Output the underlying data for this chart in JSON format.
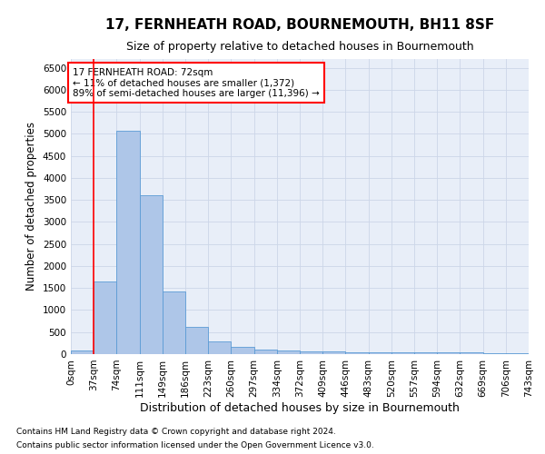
{
  "title": "17, FERNHEATH ROAD, BOURNEMOUTH, BH11 8SF",
  "subtitle": "Size of property relative to detached houses in Bournemouth",
  "xlabel": "Distribution of detached houses by size in Bournemouth",
  "ylabel": "Number of detached properties",
  "footnote1": "Contains HM Land Registry data © Crown copyright and database right 2024.",
  "footnote2": "Contains public sector information licensed under the Open Government Licence v3.0.",
  "bin_labels": [
    "0sqm",
    "37sqm",
    "74sqm",
    "111sqm",
    "149sqm",
    "186sqm",
    "223sqm",
    "260sqm",
    "297sqm",
    "334sqm",
    "372sqm",
    "409sqm",
    "446sqm",
    "483sqm",
    "520sqm",
    "557sqm",
    "594sqm",
    "632sqm",
    "669sqm",
    "706sqm",
    "743sqm"
  ],
  "bar_values": [
    75,
    1640,
    5080,
    3600,
    1420,
    620,
    295,
    155,
    110,
    80,
    65,
    55,
    50,
    45,
    40,
    38,
    35,
    33,
    30,
    28
  ],
  "bar_color": "#aec6e8",
  "bar_edge_color": "#5b9bd5",
  "property_line_color": "red",
  "annotation_text": "17 FERNHEATH ROAD: 72sqm\n← 11% of detached houses are smaller (1,372)\n89% of semi-detached houses are larger (11,396) →",
  "annotation_box_color": "white",
  "annotation_box_edge_color": "red",
  "ylim": [
    0,
    6700
  ],
  "yticks": [
    0,
    500,
    1000,
    1500,
    2000,
    2500,
    3000,
    3500,
    4000,
    4500,
    5000,
    5500,
    6000,
    6500
  ],
  "grid_color": "#ccd6e8",
  "title_fontsize": 11,
  "subtitle_fontsize": 9,
  "xlabel_fontsize": 9,
  "ylabel_fontsize": 8.5,
  "tick_fontsize": 7.5,
  "footnote_fontsize": 6.5,
  "bg_color": "white",
  "plot_bg_color": "#e8eef8"
}
